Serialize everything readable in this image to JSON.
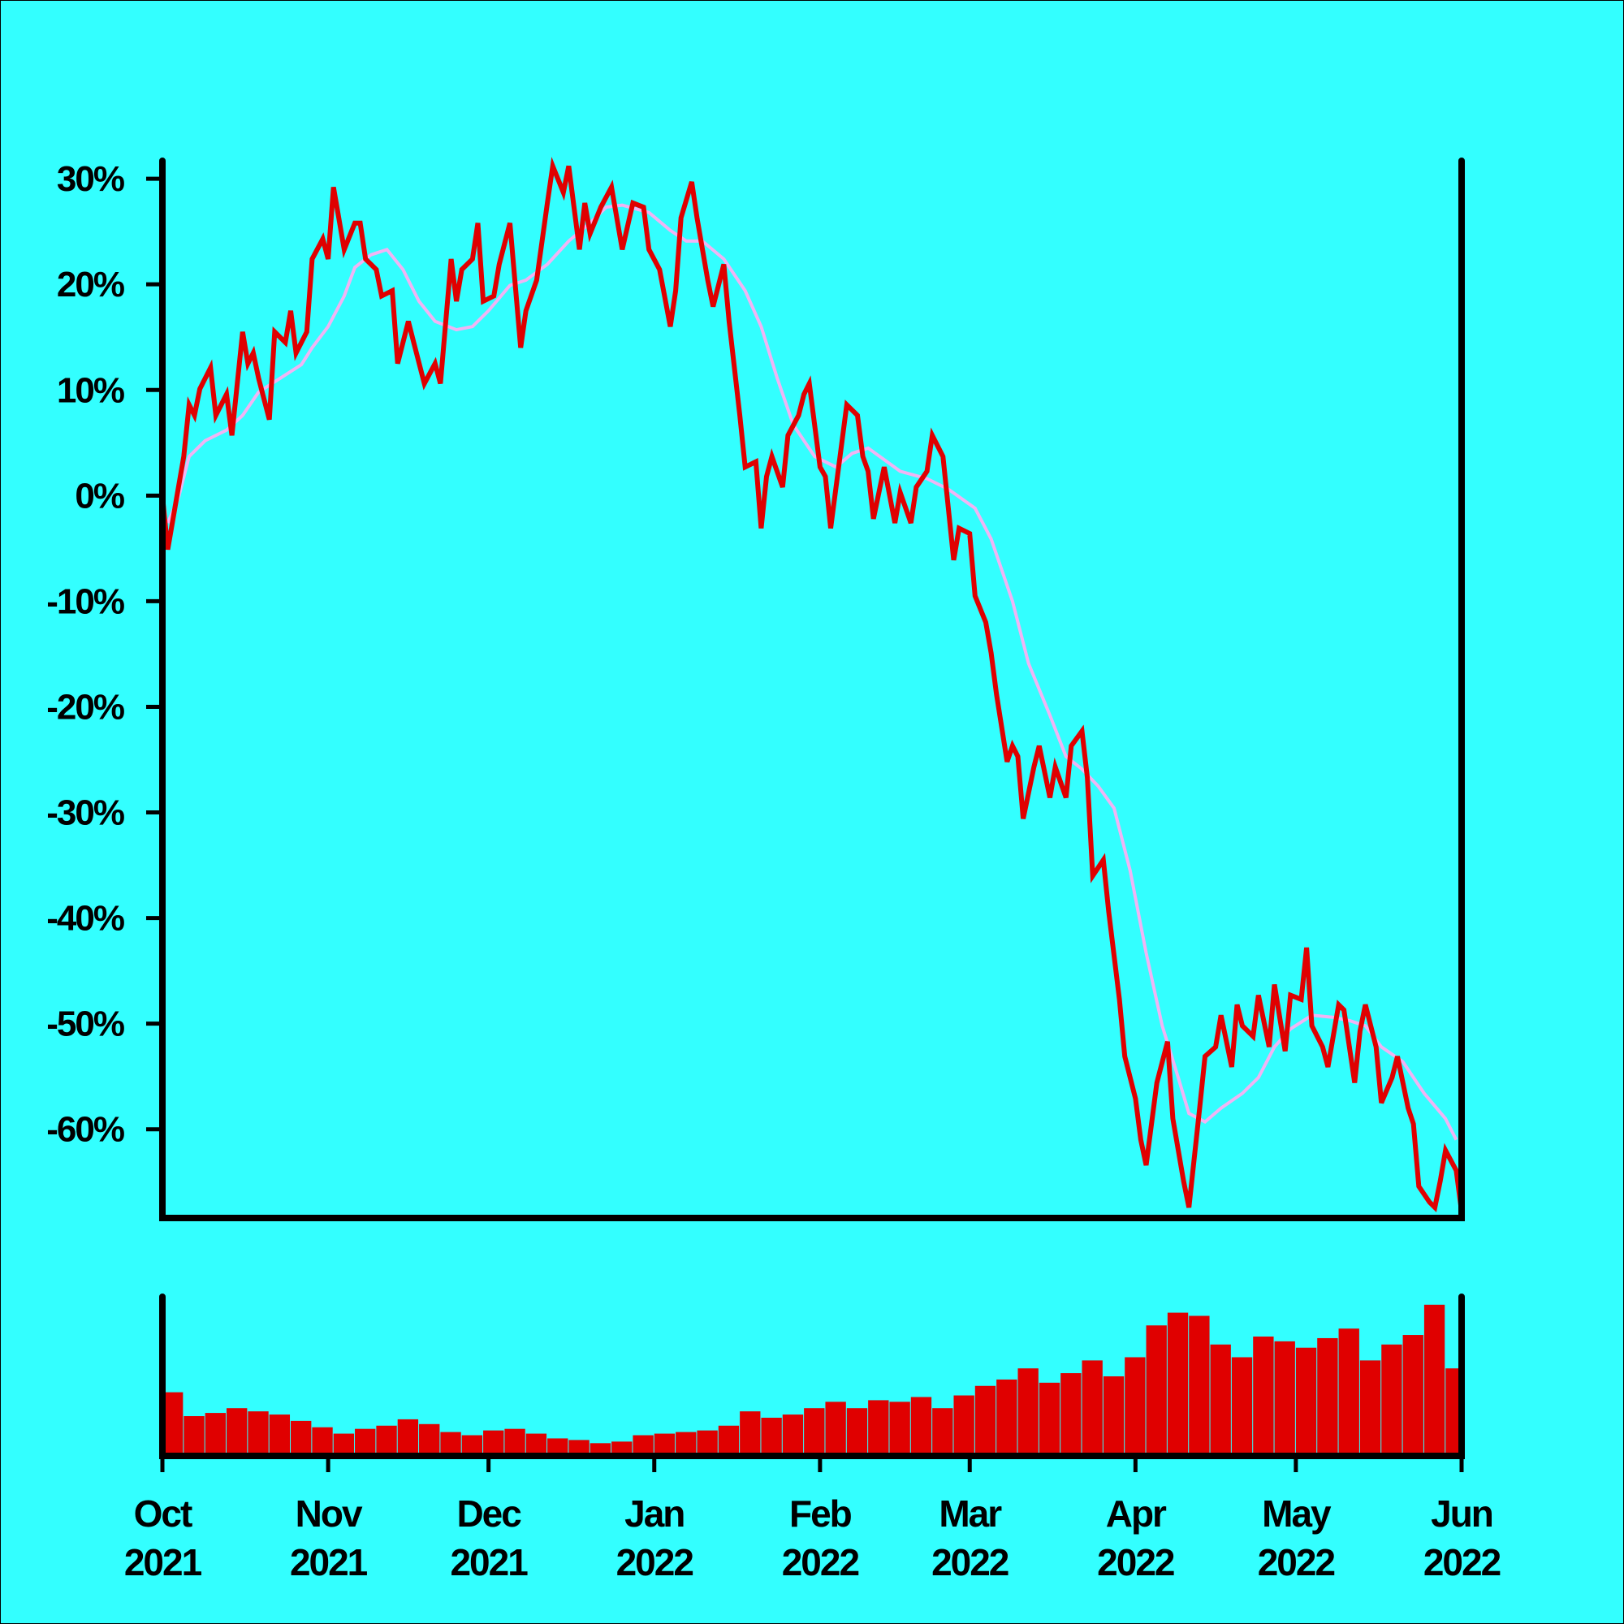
{
  "chart_data": [
    {
      "type": "line",
      "xlim": [
        "2021-10-01",
        "2022-06-01"
      ],
      "ylim": [
        -68.4,
        31.7
      ],
      "yticks": [
        {
          "value": 30,
          "label": "30%"
        },
        {
          "value": 20,
          "label": "20%"
        },
        {
          "value": 10,
          "label": "10%"
        },
        {
          "value": 0,
          "label": "0%"
        },
        {
          "value": -10,
          "label": "-10%"
        },
        {
          "value": -20,
          "label": "-20%"
        },
        {
          "value": -30,
          "label": "-30%"
        },
        {
          "value": -40,
          "label": "-40%"
        },
        {
          "value": -50,
          "label": "-50%"
        },
        {
          "value": -60,
          "label": "-60%"
        }
      ],
      "series": [
        {
          "color": "#e00000",
          "x": [
            "2021-10-01",
            "2021-10-02",
            "2021-10-04",
            "2021-10-05",
            "2021-10-06",
            "2021-10-07",
            "2021-10-08",
            "2021-10-10",
            "2021-10-11",
            "2021-10-13",
            "2021-10-14",
            "2021-10-16",
            "2021-10-17",
            "2021-10-18",
            "2021-10-19",
            "2021-10-21",
            "2021-10-22",
            "2021-10-24",
            "2021-10-25",
            "2021-10-26",
            "2021-10-28",
            "2021-10-29",
            "2021-10-31",
            "2021-11-01",
            "2021-11-02",
            "2021-11-04",
            "2021-11-06",
            "2021-11-07",
            "2021-11-08",
            "2021-11-10",
            "2021-11-11",
            "2021-11-13",
            "2021-11-14",
            "2021-11-16",
            "2021-11-17",
            "2021-11-19",
            "2021-11-21",
            "2021-11-22",
            "2021-11-24",
            "2021-11-25",
            "2021-11-26",
            "2021-11-28",
            "2021-11-29",
            "2021-11-30",
            "2021-12-02",
            "2021-12-03",
            "2021-12-05",
            "2021-12-07",
            "2021-12-08",
            "2021-12-10",
            "2021-12-12",
            "2021-12-13",
            "2021-12-15",
            "2021-12-16",
            "2021-12-18",
            "2021-12-19",
            "2021-12-20",
            "2021-12-22",
            "2021-12-24",
            "2021-12-26",
            "2021-12-28",
            "2021-12-30",
            "2021-12-31",
            "2022-01-02",
            "2022-01-04",
            "2022-01-05",
            "2022-01-06",
            "2022-01-08",
            "2022-01-09",
            "2022-01-11",
            "2022-01-12",
            "2022-01-14",
            "2022-01-15",
            "2022-01-17",
            "2022-01-18",
            "2022-01-20",
            "2022-01-21",
            "2022-01-22",
            "2022-01-23",
            "2022-01-25",
            "2022-01-26",
            "2022-01-28",
            "2022-01-29",
            "2022-01-30",
            "2022-02-01",
            "2022-02-02",
            "2022-02-03",
            "2022-02-05",
            "2022-02-06",
            "2022-02-08",
            "2022-02-09",
            "2022-02-10",
            "2022-02-11",
            "2022-02-13",
            "2022-02-15",
            "2022-02-16",
            "2022-02-18",
            "2022-02-19",
            "2022-02-21",
            "2022-02-22",
            "2022-02-24",
            "2022-02-25",
            "2022-02-26",
            "2022-02-27",
            "2022-03-01",
            "2022-03-02",
            "2022-03-04",
            "2022-03-05",
            "2022-03-06",
            "2022-03-08",
            "2022-03-09",
            "2022-03-10",
            "2022-03-11",
            "2022-03-13",
            "2022-03-14",
            "2022-03-16",
            "2022-03-17",
            "2022-03-19",
            "2022-03-20",
            "2022-03-22",
            "2022-03-23",
            "2022-03-24",
            "2022-03-26",
            "2022-03-27",
            "2022-03-29",
            "2022-03-30",
            "2022-04-01",
            "2022-04-02",
            "2022-04-03",
            "2022-04-05",
            "2022-04-07",
            "2022-04-08",
            "2022-04-10",
            "2022-04-11",
            "2022-04-13",
            "2022-04-14",
            "2022-04-16",
            "2022-04-17",
            "2022-04-19",
            "2022-04-20",
            "2022-04-21",
            "2022-04-23",
            "2022-04-24",
            "2022-04-26",
            "2022-04-27",
            "2022-04-29",
            "2022-04-30",
            "2022-05-02",
            "2022-05-03",
            "2022-05-04",
            "2022-05-06",
            "2022-05-07",
            "2022-05-09",
            "2022-05-10",
            "2022-05-12",
            "2022-05-13",
            "2022-05-14",
            "2022-05-16",
            "2022-05-17",
            "2022-05-19",
            "2022-05-20",
            "2022-05-22",
            "2022-05-23",
            "2022-05-24",
            "2022-05-26",
            "2022-05-27",
            "2022-05-28",
            "2022-05-29",
            "2022-05-31",
            "2022-06-01"
          ],
          "values": [
            0,
            -5.1,
            0.8,
            3.7,
            8.6,
            7.6,
            10.1,
            12.1,
            7.6,
            9.6,
            5.7,
            15.5,
            12.5,
            13.5,
            11.1,
            7.2,
            15.5,
            14.5,
            17.5,
            13.5,
            15.5,
            22.4,
            24.3,
            22.4,
            29.2,
            23.3,
            25.8,
            25.8,
            22.4,
            21.4,
            18.9,
            19.4,
            12.5,
            16.5,
            14.5,
            10.6,
            12.5,
            10.6,
            22.4,
            18.4,
            21.4,
            22.4,
            25.8,
            18.4,
            18.9,
            21.9,
            25.8,
            14.0,
            17.5,
            20.4,
            27.7,
            31.2,
            28.7,
            31.2,
            23.3,
            27.7,
            24.8,
            27.3,
            29.2,
            23.3,
            27.7,
            27.3,
            23.3,
            21.4,
            16.0,
            19.4,
            26.3,
            29.7,
            26.3,
            20.4,
            17.9,
            21.9,
            16.5,
            7.6,
            2.7,
            3.2,
            -3.1,
            1.8,
            3.7,
            0.8,
            5.7,
            7.6,
            9.6,
            10.6,
            2.7,
            1.8,
            -3.1,
            4.7,
            8.6,
            7.6,
            3.7,
            2.3,
            -2.2,
            2.7,
            -2.6,
            0.3,
            -2.6,
            0.8,
            2.3,
            5.7,
            3.7,
            -1.2,
            -6.1,
            -3.1,
            -3.6,
            -9.5,
            -12.0,
            -14.9,
            -18.8,
            -25.2,
            -23.7,
            -24.7,
            -30.6,
            -25.7,
            -23.7,
            -28.6,
            -25.7,
            -28.6,
            -23.7,
            -22.3,
            -26.7,
            -36.0,
            -34.5,
            -39.4,
            -47.7,
            -53.1,
            -57.1,
            -61.0,
            -63.4,
            -55.6,
            -51.7,
            -59.0,
            -64.9,
            -67.4,
            -58.0,
            -53.1,
            -52.2,
            -49.2,
            -54.1,
            -48.2,
            -50.2,
            -51.2,
            -47.3,
            -52.2,
            -46.3,
            -52.6,
            -47.3,
            -47.7,
            -42.8,
            -50.2,
            -52.2,
            -54.1,
            -48.2,
            -48.7,
            -55.6,
            -50.7,
            -48.2,
            -52.2,
            -57.5,
            -55.1,
            -53.1,
            -58.0,
            -59.5,
            -65.4,
            -66.9,
            -67.4,
            -64.9,
            -62.0,
            -63.9,
            -67.8
          ]
        },
        {
          "color": "#f0b4f4",
          "x": [
            "2021-10-02",
            "2021-10-04",
            "2021-10-06",
            "2021-10-09",
            "2021-10-13",
            "2021-10-16",
            "2021-10-19",
            "2021-10-23",
            "2021-10-27",
            "2021-10-29",
            "2021-11-01",
            "2021-11-04",
            "2021-11-06",
            "2021-11-09",
            "2021-11-12",
            "2021-11-15",
            "2021-11-18",
            "2021-11-21",
            "2021-11-25",
            "2021-11-28",
            "2021-12-01",
            "2021-12-05",
            "2021-12-08",
            "2021-12-12",
            "2021-12-16",
            "2021-12-20",
            "2021-12-23",
            "2021-12-26",
            "2021-12-31",
            "2022-01-04",
            "2022-01-07",
            "2022-01-10",
            "2022-01-14",
            "2022-01-18",
            "2022-01-21",
            "2022-01-24",
            "2022-01-27",
            "2022-01-31",
            "2022-02-04",
            "2022-02-07",
            "2022-02-10",
            "2022-02-13",
            "2022-02-16",
            "2022-02-21",
            "2022-02-25",
            "2022-03-02",
            "2022-03-05",
            "2022-03-09",
            "2022-03-12",
            "2022-03-16",
            "2022-03-19",
            "2022-03-22",
            "2022-03-25",
            "2022-03-28",
            "2022-03-31",
            "2022-04-03",
            "2022-04-06",
            "2022-04-09",
            "2022-04-11",
            "2022-04-14",
            "2022-04-17",
            "2022-04-21",
            "2022-04-24",
            "2022-04-27",
            "2022-04-30",
            "2022-05-04",
            "2022-05-08",
            "2022-05-11",
            "2022-05-14",
            "2022-05-17",
            "2022-05-21",
            "2022-05-25",
            "2022-05-29",
            "2022-05-31"
          ],
          "values": [
            -2.6,
            -0.2,
            3.7,
            5.2,
            6.2,
            7.6,
            9.8,
            11.1,
            12.4,
            14.0,
            16.0,
            18.9,
            21.6,
            22.8,
            23.3,
            21.4,
            18.4,
            16.5,
            15.7,
            16.0,
            17.5,
            19.9,
            20.4,
            21.9,
            24.1,
            25.8,
            27.3,
            27.5,
            26.8,
            25.1,
            24.1,
            24.1,
            22.4,
            19.4,
            16.0,
            11.1,
            6.7,
            3.7,
            2.7,
            4.0,
            4.5,
            3.4,
            2.3,
            1.6,
            0.6,
            -1.2,
            -4.1,
            -10.0,
            -15.9,
            -20.8,
            -24.7,
            -25.9,
            -27.5,
            -29.6,
            -35.5,
            -43.3,
            -50.2,
            -55.1,
            -58.5,
            -59.3,
            -58.0,
            -56.6,
            -55.1,
            -52.2,
            -50.5,
            -49.2,
            -49.4,
            -49.7,
            -50.2,
            -52.2,
            -53.6,
            -56.6,
            -59.0,
            -61.0
          ]
        }
      ]
    },
    {
      "type": "bar",
      "xlim": [
        "2021-10-01",
        "2022-06-01"
      ],
      "ylim": [
        0,
        100
      ],
      "color": "#e00000",
      "xticks": [
        {
          "value": "2021-10-01",
          "label": "Oct 2021"
        },
        {
          "value": "2021-11-01",
          "label": "Nov 2021"
        },
        {
          "value": "2021-12-01",
          "label": "Dec 2021"
        },
        {
          "value": "2022-01-01",
          "label": "Jan 2022"
        },
        {
          "value": "2022-02-01",
          "label": "Feb 2022"
        },
        {
          "value": "2022-03-01",
          "label": "Mar 2022"
        },
        {
          "value": "2022-04-01",
          "label": "Apr 2022"
        },
        {
          "value": "2022-05-01",
          "label": "May 2022"
        },
        {
          "value": "2022-06-01",
          "label": "Jun 2022"
        }
      ],
      "x": [
        "2021-10-01",
        "2021-10-05",
        "2021-10-09",
        "2021-10-13",
        "2021-10-17",
        "2021-10-21",
        "2021-10-25",
        "2021-10-29",
        "2021-11-02",
        "2021-11-06",
        "2021-11-10",
        "2021-11-14",
        "2021-11-18",
        "2021-11-22",
        "2021-11-26",
        "2021-11-30",
        "2021-12-04",
        "2021-12-08",
        "2021-12-12",
        "2021-12-16",
        "2021-12-20",
        "2021-12-24",
        "2021-12-28",
        "2022-01-01",
        "2022-01-05",
        "2022-01-09",
        "2022-01-13",
        "2022-01-17",
        "2022-01-21",
        "2022-01-25",
        "2022-01-29",
        "2022-02-02",
        "2022-02-06",
        "2022-02-10",
        "2022-02-14",
        "2022-02-18",
        "2022-02-22",
        "2022-02-26",
        "2022-03-02",
        "2022-03-06",
        "2022-03-10",
        "2022-03-14",
        "2022-03-18",
        "2022-03-22",
        "2022-03-26",
        "2022-03-30",
        "2022-04-03",
        "2022-04-07",
        "2022-04-11",
        "2022-04-15",
        "2022-04-19",
        "2022-04-23",
        "2022-04-27",
        "2022-05-01",
        "2022-05-05",
        "2022-05-09",
        "2022-05-13",
        "2022-05-17",
        "2022-05-21",
        "2022-05-25",
        "2022-05-29"
      ],
      "values": [
        40,
        25,
        27,
        30,
        28,
        26,
        22,
        18,
        14,
        17,
        19,
        23,
        20,
        15,
        13,
        16,
        17,
        14,
        11,
        10,
        8,
        9,
        13,
        14,
        15,
        16,
        19,
        28,
        24,
        26,
        30,
        34,
        30,
        35,
        34,
        37,
        30,
        38,
        44,
        48,
        55,
        46,
        52,
        60,
        50,
        62,
        82,
        90,
        88,
        70,
        62,
        75,
        72,
        68,
        74,
        80,
        60,
        70,
        76,
        95,
        55
      ]
    }
  ]
}
